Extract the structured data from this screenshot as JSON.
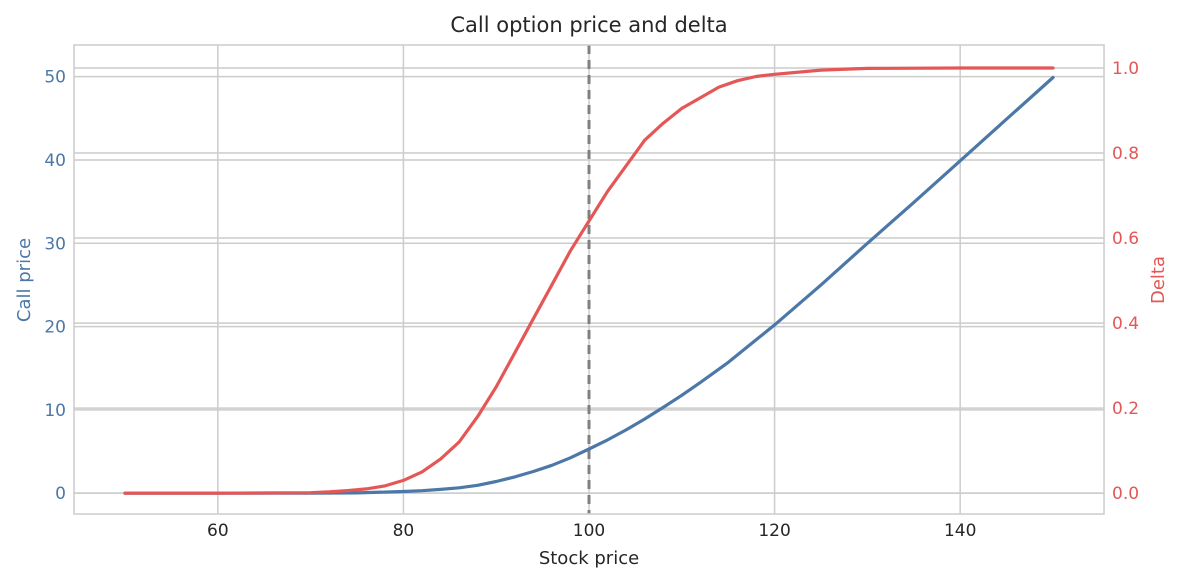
{
  "chart_data": {
    "type": "line",
    "title": "Call option price and delta",
    "xlabel": "Stock price",
    "ylabel_left": "Call price",
    "ylabel_right": "Delta",
    "xlim": [
      44.5,
      155.5
    ],
    "ylim_left": [
      -2.5,
      53.8
    ],
    "ylim_right": [
      -0.049,
      1.054
    ],
    "x_ticks": [
      60,
      80,
      100,
      120,
      140
    ],
    "y_left_ticks": [
      0,
      10,
      20,
      30,
      40,
      50
    ],
    "y_right_ticks": [
      "0.0",
      "0.2",
      "0.4",
      "0.6",
      "0.8",
      "1.0"
    ],
    "grid": true,
    "vertical_line": {
      "x": 100,
      "style": "dashed"
    },
    "colors": {
      "call": "#4c78a8",
      "delta": "#e45756",
      "vline": "#808080",
      "grid": "#cccccc",
      "text": "#262626"
    },
    "series": [
      {
        "name": "Call price",
        "axis": "left",
        "x": [
          50,
          55,
          60,
          65,
          70,
          75,
          80,
          82,
          84,
          86,
          88,
          90,
          92,
          94,
          96,
          98,
          100,
          102,
          104,
          106,
          108,
          110,
          112,
          115,
          118,
          120,
          125,
          130,
          135,
          140,
          145,
          150
        ],
        "values": [
          0,
          0,
          0,
          0,
          0,
          0.03,
          0.2,
          0.3,
          0.45,
          0.65,
          0.95,
          1.4,
          1.95,
          2.6,
          3.35,
          4.25,
          5.3,
          6.4,
          7.6,
          8.9,
          10.3,
          11.75,
          13.3,
          15.7,
          18.4,
          20.2,
          25.0,
          30.0,
          34.9,
          39.9,
          44.9,
          49.9
        ]
      },
      {
        "name": "Delta",
        "axis": "right",
        "x": [
          50,
          60,
          70,
          72,
          74,
          76,
          78,
          80,
          82,
          84,
          86,
          88,
          90,
          92,
          94,
          96,
          98,
          100,
          102,
          104,
          106,
          108,
          110,
          112,
          114,
          116,
          118,
          120,
          125,
          130,
          140,
          150
        ],
        "values": [
          0,
          0,
          0.001,
          0.003,
          0.006,
          0.01,
          0.017,
          0.03,
          0.05,
          0.08,
          0.12,
          0.18,
          0.25,
          0.33,
          0.41,
          0.49,
          0.57,
          0.64,
          0.71,
          0.77,
          0.83,
          0.87,
          0.905,
          0.93,
          0.955,
          0.97,
          0.98,
          0.985,
          0.995,
          0.999,
          1.0,
          1.0
        ]
      }
    ]
  }
}
